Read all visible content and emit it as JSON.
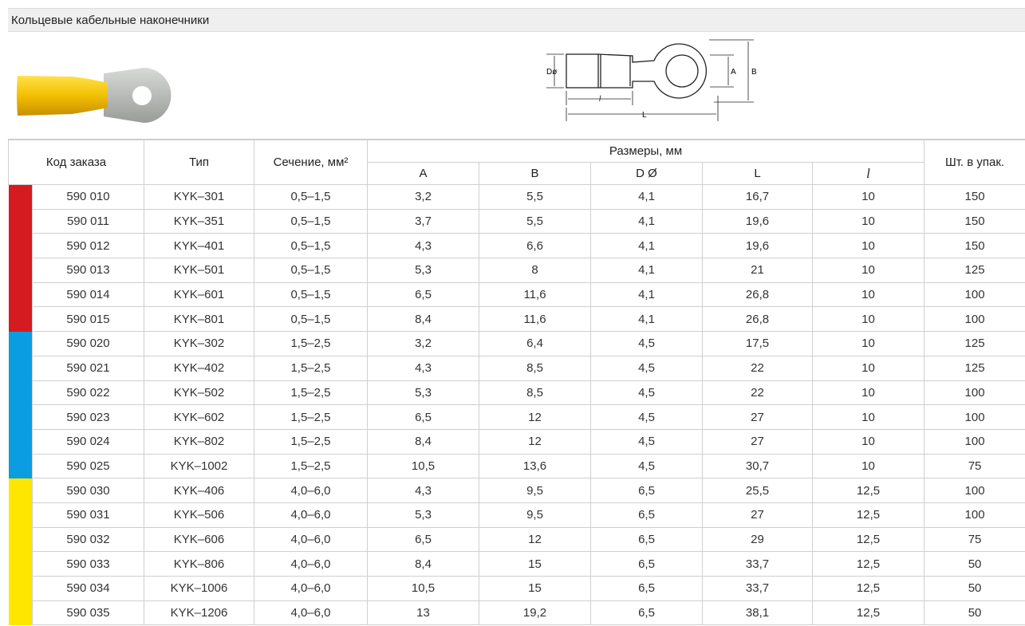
{
  "title": "Кольцевые кабельные наконечники",
  "diagram": {
    "labels": {
      "d": "Dø",
      "l": "l",
      "L": "L",
      "A": "A",
      "B": "B"
    }
  },
  "table": {
    "headers": [
      "Код заказа",
      "Тип",
      "Сечение, мм²",
      "Размеры, мм",
      "Шт. в упак."
    ],
    "subheaders": [
      "A",
      "B",
      "D Ø",
      "L",
      "l"
    ],
    "rows": [
      [
        "590 010",
        "KYK–301",
        "0,5–1,5",
        "3,2",
        "5,5",
        "4,1",
        "16,7",
        "10",
        "150"
      ],
      [
        "590 011",
        "KYK–351",
        "0,5–1,5",
        "3,7",
        "5,5",
        "4,1",
        "19,6",
        "10",
        "150"
      ],
      [
        "590 012",
        "KYK–401",
        "0,5–1,5",
        "4,3",
        "6,6",
        "4,1",
        "19,6",
        "10",
        "150"
      ],
      [
        "590 013",
        "KYK–501",
        "0,5–1,5",
        "5,3",
        "8",
        "4,1",
        "21",
        "10",
        "125"
      ],
      [
        "590 014",
        "KYK–601",
        "0,5–1,5",
        "6,5",
        "11,6",
        "4,1",
        "26,8",
        "10",
        "100"
      ],
      [
        "590 015",
        "KYK–801",
        "0,5–1,5",
        "8,4",
        "11,6",
        "4,1",
        "26,8",
        "10",
        "100"
      ],
      [
        "590 020",
        "KYK–302",
        "1,5–2,5",
        "3,2",
        "6,4",
        "4,5",
        "17,5",
        "10",
        "125"
      ],
      [
        "590 021",
        "KYK–402",
        "1,5–2,5",
        "4,3",
        "8,5",
        "4,5",
        "22",
        "10",
        "125"
      ],
      [
        "590 022",
        "KYK–502",
        "1,5–2,5",
        "5,3",
        "8,5",
        "4,5",
        "22",
        "10",
        "100"
      ],
      [
        "590 023",
        "KYK–602",
        "1,5–2,5",
        "6,5",
        "12",
        "4,5",
        "27",
        "10",
        "100"
      ],
      [
        "590 024",
        "KYK–802",
        "1,5–2,5",
        "8,4",
        "12",
        "4,5",
        "27",
        "10",
        "100"
      ],
      [
        "590 025",
        "KYK–1002",
        "1,5–2,5",
        "10,5",
        "13,6",
        "4,5",
        "30,7",
        "10",
        "75"
      ],
      [
        "590 030",
        "KYK–406",
        "4,0–6,0",
        "4,3",
        "9,5",
        "6,5",
        "25,5",
        "12,5",
        "100"
      ],
      [
        "590 031",
        "KYK–506",
        "4,0–6,0",
        "5,3",
        "9,5",
        "6,5",
        "27",
        "12,5",
        "100"
      ],
      [
        "590 032",
        "KYK–606",
        "4,0–6,0",
        "6,5",
        "12",
        "6,5",
        "29",
        "12,5",
        "75"
      ],
      [
        "590 033",
        "KYK–806",
        "4,0–6,0",
        "8,4",
        "15",
        "6,5",
        "33,7",
        "12,5",
        "50"
      ],
      [
        "590 034",
        "KYK–1006",
        "4,0–6,0",
        "10,5",
        "15",
        "6,5",
        "33,7",
        "12,5",
        "50"
      ],
      [
        "590 035",
        "KYK–1206",
        "4,0–6,0",
        "13",
        "19,2",
        "6,5",
        "38,1",
        "12,5",
        "50"
      ]
    ],
    "row_colors": [
      "#d51b20",
      "#d51b20",
      "#d51b20",
      "#d51b20",
      "#d51b20",
      "#d51b20",
      "#0a9ee0",
      "#0a9ee0",
      "#0a9ee0",
      "#0a9ee0",
      "#0a9ee0",
      "#0a9ee0",
      "#ffe600",
      "#ffe600",
      "#ffe600",
      "#ffe600",
      "#ffe600",
      "#ffe600"
    ]
  }
}
